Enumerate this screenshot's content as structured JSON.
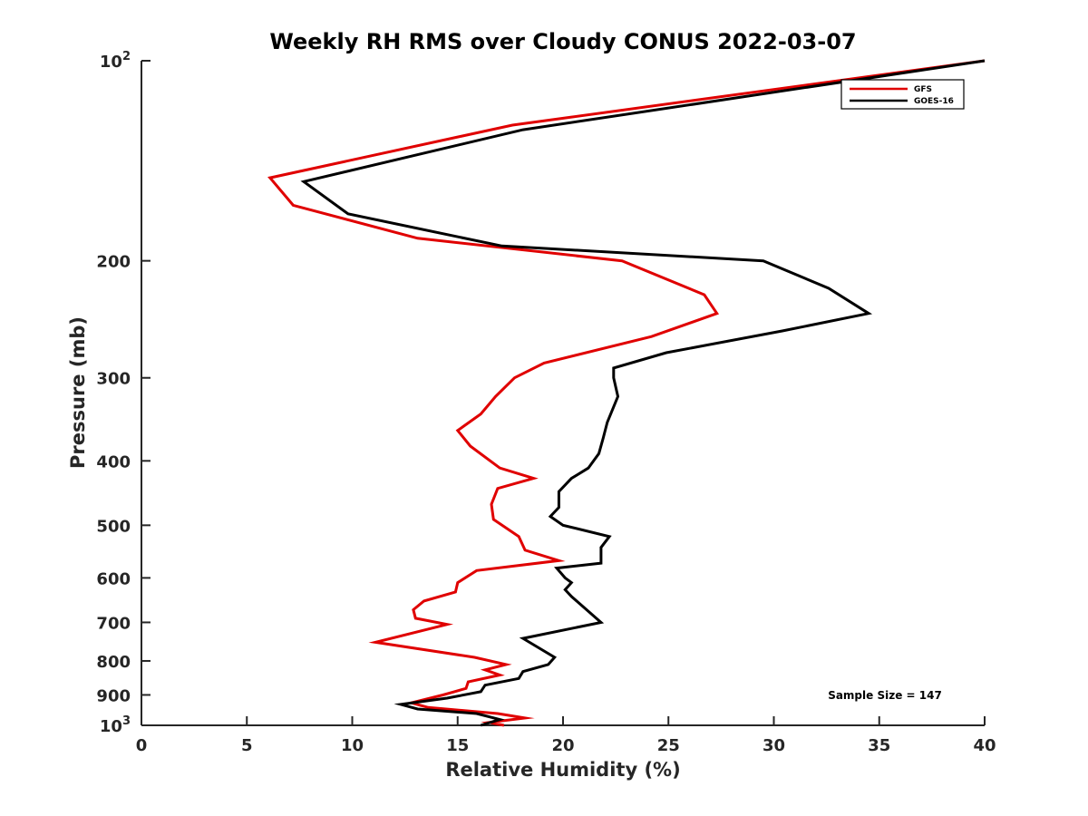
{
  "chart_data": {
    "type": "line",
    "title": "Weekly RH RMS over Cloudy CONUS 2022-03-07",
    "xlabel": "Relative Humidity (%)",
    "ylabel": "Pressure (mb)",
    "xlim": [
      0,
      40
    ],
    "ylim": [
      100,
      1000
    ],
    "y_scale": "log",
    "y_reversed": true,
    "grid": false,
    "legend_position": "top-right",
    "annotation": "Sample Size = 147",
    "x_ticks": [
      "0",
      "5",
      "10",
      "15",
      "20",
      "25",
      "30",
      "35",
      "40"
    ],
    "x_tick_values": [
      0,
      5,
      10,
      15,
      20,
      25,
      30,
      35,
      40
    ],
    "y_ticks": [
      {
        "value": 100,
        "base": "10",
        "exp": "2"
      },
      {
        "value": 200,
        "label": "200"
      },
      {
        "value": 300,
        "label": "300"
      },
      {
        "value": 400,
        "label": "400"
      },
      {
        "value": 500,
        "label": "500"
      },
      {
        "value": 600,
        "label": "600"
      },
      {
        "value": 700,
        "label": "700"
      },
      {
        "value": 800,
        "label": "800"
      },
      {
        "value": 900,
        "label": "900"
      },
      {
        "value": 1000,
        "base": "10",
        "exp": "3"
      }
    ],
    "series": [
      {
        "name": "GFS",
        "color": "#e00000",
        "points": [
          [
            40.0,
            100
          ],
          [
            17.6,
            125
          ],
          [
            6.1,
            150
          ],
          [
            7.2,
            165
          ],
          [
            13.1,
            185
          ],
          [
            22.8,
            200
          ],
          [
            26.7,
            225
          ],
          [
            27.3,
            240
          ],
          [
            24.2,
            260
          ],
          [
            19.1,
            285
          ],
          [
            17.7,
            300
          ],
          [
            16.8,
            320
          ],
          [
            16.1,
            340
          ],
          [
            15.0,
            360
          ],
          [
            15.6,
            380
          ],
          [
            17.0,
            410
          ],
          [
            18.6,
            425
          ],
          [
            16.9,
            440
          ],
          [
            16.6,
            465
          ],
          [
            16.7,
            490
          ],
          [
            17.9,
            520
          ],
          [
            18.2,
            545
          ],
          [
            19.8,
            565
          ],
          [
            15.9,
            585
          ],
          [
            15.0,
            610
          ],
          [
            14.9,
            630
          ],
          [
            13.4,
            650
          ],
          [
            12.9,
            670
          ],
          [
            13.0,
            690
          ],
          [
            14.5,
            705
          ],
          [
            11.1,
            750
          ],
          [
            15.8,
            790
          ],
          [
            17.3,
            810
          ],
          [
            16.3,
            825
          ],
          [
            17.0,
            840
          ],
          [
            15.5,
            860
          ],
          [
            15.4,
            880
          ],
          [
            14.3,
            900
          ],
          [
            12.8,
            925
          ],
          [
            13.6,
            940
          ],
          [
            16.9,
            960
          ],
          [
            18.2,
            975
          ],
          [
            16.5,
            990
          ],
          [
            17.2,
            1000
          ]
        ]
      },
      {
        "name": "GOES-16",
        "color": "#000000",
        "points": [
          [
            40.0,
            100
          ],
          [
            18.1,
            127
          ],
          [
            7.7,
            152
          ],
          [
            9.8,
            170
          ],
          [
            17.1,
            190
          ],
          [
            29.5,
            200
          ],
          [
            32.6,
            220
          ],
          [
            34.5,
            240
          ],
          [
            30.4,
            255
          ],
          [
            24.9,
            275
          ],
          [
            22.4,
            290
          ],
          [
            22.4,
            300
          ],
          [
            22.6,
            320
          ],
          [
            22.1,
            350
          ],
          [
            21.9,
            370
          ],
          [
            21.7,
            390
          ],
          [
            21.2,
            410
          ],
          [
            20.4,
            425
          ],
          [
            19.8,
            445
          ],
          [
            19.8,
            470
          ],
          [
            19.4,
            485
          ],
          [
            20.0,
            500
          ],
          [
            22.2,
            520
          ],
          [
            21.8,
            540
          ],
          [
            21.8,
            570
          ],
          [
            19.7,
            580
          ],
          [
            20.1,
            600
          ],
          [
            20.4,
            610
          ],
          [
            20.1,
            625
          ],
          [
            20.4,
            640
          ],
          [
            21.8,
            700
          ],
          [
            18.1,
            740
          ],
          [
            19.6,
            790
          ],
          [
            19.3,
            810
          ],
          [
            18.1,
            830
          ],
          [
            17.9,
            850
          ],
          [
            16.3,
            870
          ],
          [
            16.1,
            890
          ],
          [
            14.5,
            910
          ],
          [
            12.3,
            930
          ],
          [
            13.1,
            945
          ],
          [
            15.9,
            960
          ],
          [
            17.0,
            980
          ],
          [
            16.1,
            1000
          ]
        ]
      }
    ]
  }
}
